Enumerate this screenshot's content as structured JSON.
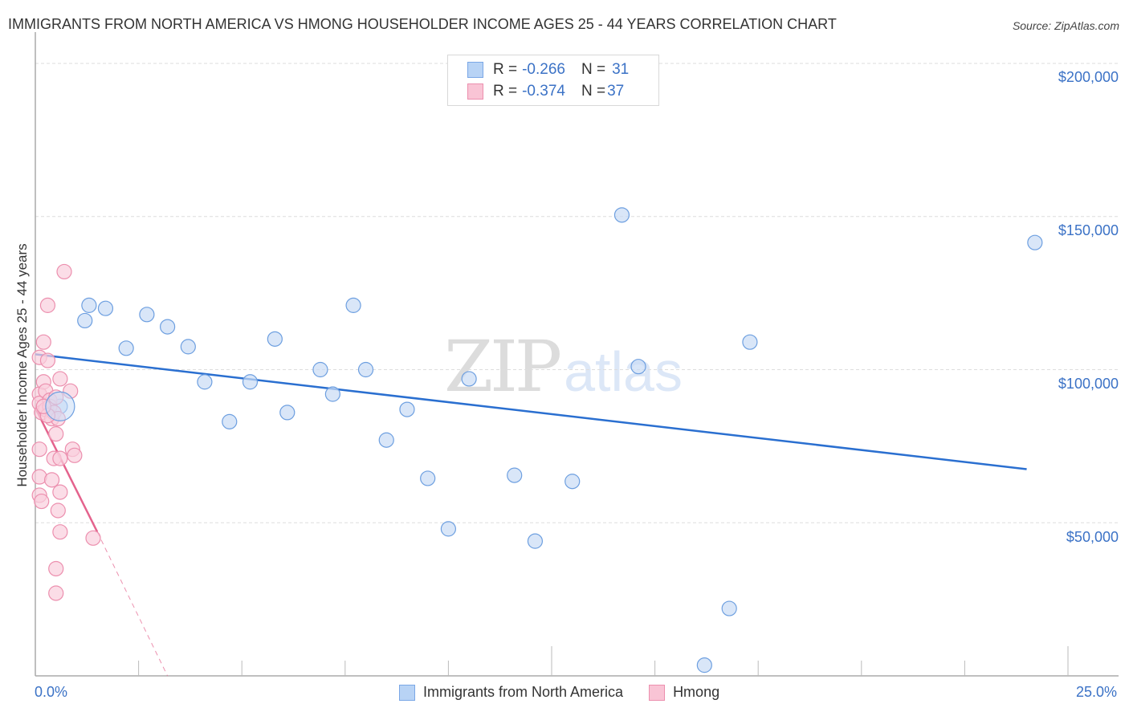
{
  "header": {
    "title": "IMMIGRANTS FROM NORTH AMERICA VS HMONG HOUSEHOLDER INCOME AGES 25 - 44 YEARS CORRELATION CHART",
    "source": "Source: ZipAtlas.com"
  },
  "legend": {
    "rows": [
      {
        "r_label": "R = ",
        "r_value": "-0.266",
        "n_label": "N = ",
        "n_value": "31",
        "color": "#b8d3f5",
        "border": "#7aa7e6"
      },
      {
        "r_label": "R = ",
        "r_value": "-0.374",
        "n_label": "N = ",
        "n_value": "37",
        "color": "#f9c4d5",
        "border": "#ec8fae"
      }
    ]
  },
  "axes": {
    "ylabel": "Householder Income Ages 25 - 44 years",
    "x_min_label": "0.0%",
    "x_max_label": "25.0%",
    "y_ticks": [
      "$200,000",
      "$150,000",
      "$100,000",
      "$50,000"
    ]
  },
  "bottom_legend": {
    "items": [
      {
        "label": "Immigrants from North America",
        "color": "#b8d3f5",
        "border": "#7aa7e6"
      },
      {
        "label": "Hmong",
        "color": "#f9c4d5",
        "border": "#ec8fae"
      }
    ]
  },
  "watermark": {
    "zip": "ZIP",
    "atlas": "atlas"
  },
  "colors": {
    "blue_fill": "#c9dcf5",
    "blue_stroke": "#6d9fe0",
    "blue_line": "#2a6fd0",
    "pink_fill": "#f9cfdd",
    "pink_stroke": "#ec8fae",
    "pink_line": "#e4638d",
    "axis_text": "#3b72c6",
    "grid": "#dddddd"
  },
  "chart_data": {
    "type": "scatter",
    "title": "IMMIGRANTS FROM NORTH AMERICA VS HMONG HOUSEHOLDER INCOME AGES 25 - 44 YEARS CORRELATION CHART",
    "xlabel": "",
    "ylabel": "Householder Income Ages 25 - 44 years",
    "xlim": [
      0,
      25
    ],
    "ylim": [
      0,
      210000
    ],
    "x_tick_labels": [
      "0.0%",
      "25.0%"
    ],
    "y_tick_labels": [
      "$50,000",
      "$100,000",
      "$150,000",
      "$200,000"
    ],
    "grid": true,
    "legend_position": "top-center",
    "series": [
      {
        "name": "Immigrants from North America",
        "r": -0.266,
        "n": 31,
        "points": [
          [
            0.6,
            88000
          ],
          [
            1.2,
            116000
          ],
          [
            1.3,
            121000
          ],
          [
            1.7,
            120000
          ],
          [
            2.2,
            107000
          ],
          [
            2.7,
            118000
          ],
          [
            3.2,
            114000
          ],
          [
            3.7,
            107500
          ],
          [
            4.1,
            96000
          ],
          [
            4.7,
            83000
          ],
          [
            5.2,
            96000
          ],
          [
            5.8,
            110000
          ],
          [
            6.1,
            86000
          ],
          [
            6.9,
            100000
          ],
          [
            7.2,
            92000
          ],
          [
            7.7,
            121000
          ],
          [
            8.0,
            100000
          ],
          [
            8.5,
            77000
          ],
          [
            9.0,
            87000
          ],
          [
            9.5,
            64500
          ],
          [
            10.0,
            48000
          ],
          [
            10.5,
            97000
          ],
          [
            11.6,
            65500
          ],
          [
            12.1,
            44000
          ],
          [
            13.0,
            63500
          ],
          [
            14.2,
            150500
          ],
          [
            14.6,
            101000
          ],
          [
            16.2,
            3500
          ],
          [
            16.8,
            22000
          ],
          [
            17.3,
            109000
          ],
          [
            24.2,
            141500
          ]
        ],
        "trendline": {
          "x": [
            0,
            24
          ],
          "y": [
            105000,
            67500
          ]
        }
      },
      {
        "name": "Hmong",
        "r": -0.374,
        "n": 37,
        "points": [
          [
            0.1,
            104000
          ],
          [
            0.1,
            92000
          ],
          [
            0.1,
            89000
          ],
          [
            0.15,
            86000
          ],
          [
            0.1,
            74000
          ],
          [
            0.1,
            65000
          ],
          [
            0.1,
            59000
          ],
          [
            0.15,
            57000
          ],
          [
            0.2,
            109000
          ],
          [
            0.2,
            96000
          ],
          [
            0.25,
            93000
          ],
          [
            0.25,
            87000
          ],
          [
            0.3,
            103000
          ],
          [
            0.3,
            121000
          ],
          [
            0.35,
            90000
          ],
          [
            0.35,
            88000
          ],
          [
            0.4,
            84000
          ],
          [
            0.4,
            64000
          ],
          [
            0.45,
            71000
          ],
          [
            0.45,
            86000
          ],
          [
            0.5,
            91000
          ],
          [
            0.5,
            79000
          ],
          [
            0.55,
            84000
          ],
          [
            0.6,
            97000
          ],
          [
            0.5,
            35000
          ],
          [
            0.5,
            27000
          ],
          [
            0.55,
            54000
          ],
          [
            0.6,
            47000
          ],
          [
            0.6,
            71000
          ],
          [
            0.6,
            60000
          ],
          [
            0.7,
            132000
          ],
          [
            0.85,
            93000
          ],
          [
            0.9,
            74000
          ],
          [
            0.95,
            72000
          ],
          [
            1.4,
            45000
          ],
          [
            0.3,
            85000
          ],
          [
            0.2,
            88000
          ]
        ],
        "trendline": {
          "x": [
            0,
            1.5
          ],
          "y": [
            87500,
            47000
          ]
        },
        "trendline_extension": {
          "x": [
            1.5,
            3.2
          ],
          "y": [
            47000,
            0
          ]
        }
      }
    ]
  }
}
